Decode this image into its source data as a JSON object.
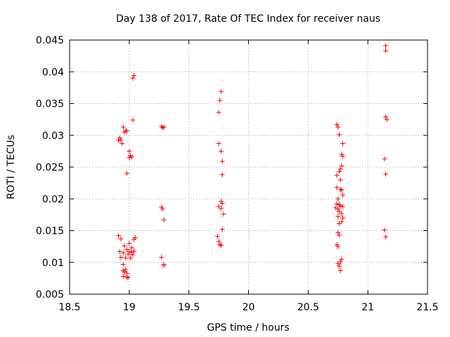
{
  "chart_data": {
    "type": "scatter",
    "title": "Day 138 of 2017, Rate Of TEC Index for receiver naus",
    "xlabel": "GPS time / hours",
    "ylabel": "ROTI / TECUs",
    "xlim": [
      18.5,
      21.5
    ],
    "ylim": [
      0.005,
      0.045
    ],
    "grid": true,
    "marker": "+",
    "color": "#ff0000",
    "x_ticks": [
      "18.5",
      "19",
      "19.5",
      "20",
      "20.5",
      "21",
      "21.5"
    ],
    "y_ticks": [
      "0.005",
      "0.01",
      "0.015",
      "0.02",
      "0.025",
      "0.03",
      "0.035",
      "0.04",
      "0.045"
    ],
    "series": [
      {
        "name": "ROTI",
        "points": [
          [
            19.03,
            0.039
          ],
          [
            19.04,
            0.0394
          ],
          [
            19.03,
            0.0324
          ],
          [
            18.95,
            0.0313
          ],
          [
            18.97,
            0.0307
          ],
          [
            18.96,
            0.0305
          ],
          [
            18.98,
            0.0307
          ],
          [
            18.92,
            0.0296
          ],
          [
            18.93,
            0.0293
          ],
          [
            18.91,
            0.0292
          ],
          [
            18.94,
            0.0287
          ],
          [
            19.0,
            0.0275
          ],
          [
            19.01,
            0.0268
          ],
          [
            19.0,
            0.0265
          ],
          [
            19.02,
            0.0266
          ],
          [
            18.98,
            0.024
          ],
          [
            18.91,
            0.0142
          ],
          [
            18.93,
            0.0137
          ],
          [
            19.05,
            0.0139
          ],
          [
            19.04,
            0.0136
          ],
          [
            19.0,
            0.013
          ],
          [
            18.96,
            0.0126
          ],
          [
            19.02,
            0.0123
          ],
          [
            18.92,
            0.0117
          ],
          [
            18.95,
            0.0115
          ],
          [
            18.98,
            0.012
          ],
          [
            19.0,
            0.0117
          ],
          [
            19.02,
            0.0116
          ],
          [
            19.04,
            0.0118
          ],
          [
            18.99,
            0.0113
          ],
          [
            19.03,
            0.0112
          ],
          [
            18.93,
            0.0108
          ],
          [
            18.97,
            0.0107
          ],
          [
            19.01,
            0.0107
          ],
          [
            18.95,
            0.0097
          ],
          [
            18.97,
            0.0089
          ],
          [
            18.95,
            0.0087
          ],
          [
            18.96,
            0.0085
          ],
          [
            18.98,
            0.0083
          ],
          [
            18.95,
            0.0078
          ],
          [
            18.98,
            0.0077
          ],
          [
            18.99,
            0.0076
          ],
          [
            19.27,
            0.0314
          ],
          [
            19.29,
            0.0313
          ],
          [
            19.28,
            0.0312
          ],
          [
            19.27,
            0.0187
          ],
          [
            19.28,
            0.0184
          ],
          [
            19.29,
            0.0167
          ],
          [
            19.27,
            0.0108
          ],
          [
            19.29,
            0.0097
          ],
          [
            19.29,
            0.0095
          ],
          [
            19.77,
            0.0369
          ],
          [
            19.76,
            0.0355
          ],
          [
            19.75,
            0.0336
          ],
          [
            19.75,
            0.0287
          ],
          [
            19.77,
            0.0275
          ],
          [
            19.78,
            0.0259
          ],
          [
            19.78,
            0.0238
          ],
          [
            19.77,
            0.0196
          ],
          [
            19.78,
            0.0193
          ],
          [
            19.75,
            0.0188
          ],
          [
            19.77,
            0.0185
          ],
          [
            19.79,
            0.0176
          ],
          [
            19.78,
            0.0152
          ],
          [
            19.74,
            0.0141
          ],
          [
            19.75,
            0.0133
          ],
          [
            19.76,
            0.0128
          ],
          [
            19.77,
            0.0127
          ],
          [
            20.74,
            0.0317
          ],
          [
            20.75,
            0.0313
          ],
          [
            20.76,
            0.0301
          ],
          [
            20.79,
            0.0287
          ],
          [
            20.78,
            0.027
          ],
          [
            20.79,
            0.0267
          ],
          [
            20.78,
            0.0252
          ],
          [
            20.77,
            0.0247
          ],
          [
            20.76,
            0.0243
          ],
          [
            20.74,
            0.0237
          ],
          [
            20.77,
            0.023
          ],
          [
            20.74,
            0.0218
          ],
          [
            20.77,
            0.0215
          ],
          [
            20.78,
            0.0214
          ],
          [
            20.79,
            0.0206
          ],
          [
            20.75,
            0.02
          ],
          [
            20.74,
            0.0192
          ],
          [
            20.76,
            0.0191
          ],
          [
            20.77,
            0.0189
          ],
          [
            20.79,
            0.0188
          ],
          [
            20.73,
            0.0186
          ],
          [
            20.75,
            0.0184
          ],
          [
            20.76,
            0.018
          ],
          [
            20.78,
            0.0177
          ],
          [
            20.75,
            0.0172
          ],
          [
            20.79,
            0.017
          ],
          [
            20.78,
            0.0164
          ],
          [
            20.76,
            0.0161
          ],
          [
            20.75,
            0.0147
          ],
          [
            20.76,
            0.0143
          ],
          [
            20.74,
            0.0128
          ],
          [
            20.75,
            0.0125
          ],
          [
            20.78,
            0.0105
          ],
          [
            20.77,
            0.0101
          ],
          [
            20.75,
            0.0098
          ],
          [
            20.76,
            0.0094
          ],
          [
            20.77,
            0.0087
          ],
          [
            21.15,
            0.0441
          ],
          [
            21.15,
            0.0433
          ],
          [
            21.15,
            0.0329
          ],
          [
            21.16,
            0.0325
          ],
          [
            21.14,
            0.0263
          ],
          [
            21.15,
            0.0239
          ],
          [
            21.14,
            0.0151
          ],
          [
            21.15,
            0.014
          ]
        ]
      }
    ]
  }
}
